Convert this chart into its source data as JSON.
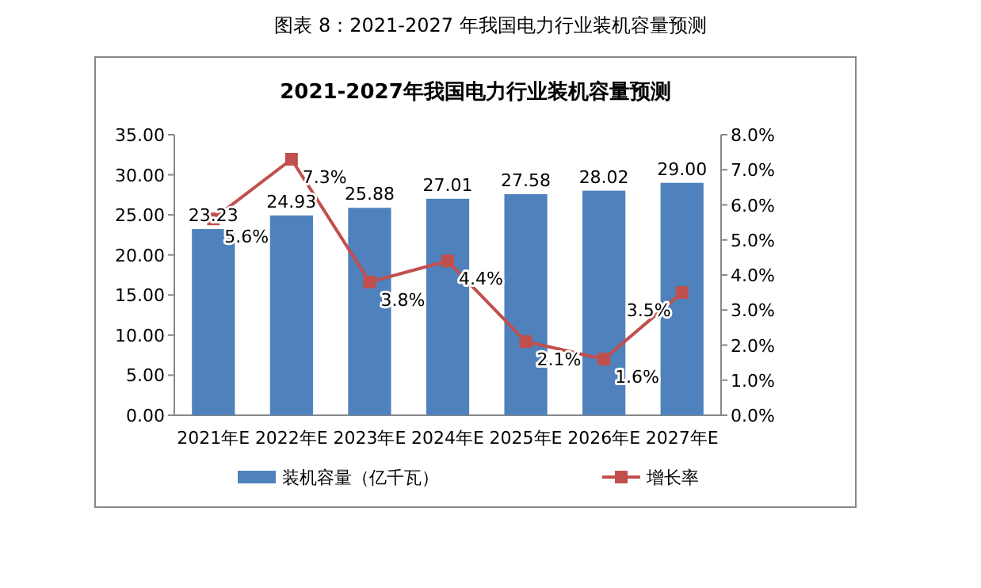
{
  "chart_data": {
    "type": "bar",
    "title": "2021-2027年我国电力行业装机容量预测",
    "annotations": [
      "图表 8：2021-2027 年我国电力行业装机容量预测"
    ],
    "categories": [
      "2021年E",
      "2022年E",
      "2023年E",
      "2024年E",
      "2025年E",
      "2026年E",
      "2027年E"
    ],
    "series": [
      {
        "name": "装机容量（亿千瓦）",
        "color": "#4f81bd",
        "values": [
          23.23,
          24.93,
          25.88,
          27.01,
          27.58,
          28.02,
          29.0
        ],
        "value_labels": [
          "23.23",
          "24.93",
          "25.88",
          "27.01",
          "27.58",
          "28.02",
          "29.00"
        ]
      },
      {
        "name": "增长率",
        "type": "line",
        "axis": "y2",
        "color": "#c0504d",
        "marker": "square",
        "values": [
          5.6,
          7.3,
          3.8,
          4.4,
          2.1,
          1.6,
          3.5
        ],
        "value_labels": [
          "5.6%",
          "7.3%",
          "3.8%",
          "4.4%",
          "2.1%",
          "1.6%",
          "3.5%"
        ]
      }
    ],
    "ylim": [
      0,
      35
    ],
    "yticks": [
      {
        "value": 0,
        "label": "0.00"
      },
      {
        "value": 5,
        "label": "5.00"
      },
      {
        "value": 10,
        "label": "10.00"
      },
      {
        "value": 15,
        "label": "15.00"
      },
      {
        "value": 20,
        "label": "20.00"
      },
      {
        "value": 25,
        "label": "25.00"
      },
      {
        "value": 30,
        "label": "30.00"
      },
      {
        "value": 35,
        "label": "35.00"
      }
    ],
    "y2lim": [
      0,
      8
    ],
    "y2ticks": [
      {
        "value": 0,
        "label": "0.0%"
      },
      {
        "value": 1,
        "label": "1.0%"
      },
      {
        "value": 2,
        "label": "2.0%"
      },
      {
        "value": 3,
        "label": "3.0%"
      },
      {
        "value": 4,
        "label": "4.0%"
      },
      {
        "value": 5,
        "label": "5.0%"
      },
      {
        "value": 6,
        "label": "6.0%"
      },
      {
        "value": 7,
        "label": "7.0%"
      },
      {
        "value": 8,
        "label": "8.0%"
      }
    ],
    "legend": "bottom",
    "grid": false
  }
}
